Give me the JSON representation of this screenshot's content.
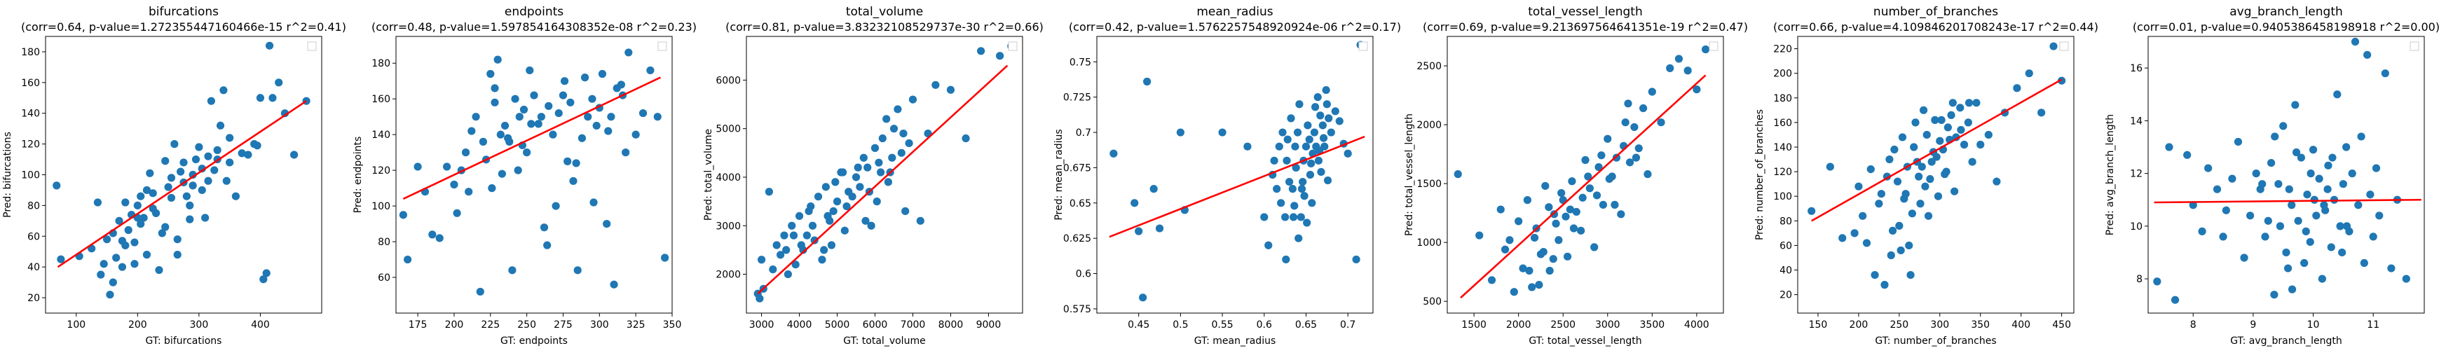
{
  "colors": {
    "points": "#1f77b4",
    "fit_line": "#ff0000",
    "axes": "#000000",
    "background": "#ffffff"
  },
  "chart_data": [
    {
      "type": "scatter",
      "grid": false,
      "legend": "top-right (empty)",
      "title": "bifurcations",
      "subtitle": "(corr=0.64, p-value=1.272355447160466e-15 r^2=0.41)",
      "xlabel": "GT: bifurcations",
      "ylabel": "Pred: bifurcations",
      "xlim": [
        50,
        500
      ],
      "ylim": [
        10,
        190
      ],
      "xticks": [
        100,
        200,
        300,
        400
      ],
      "yticks": [
        20,
        40,
        60,
        80,
        100,
        120,
        140,
        160,
        180
      ],
      "fit": [
        [
          70,
          40
        ],
        [
          475,
          148
        ]
      ],
      "x": [
        68,
        75,
        105,
        125,
        135,
        145,
        150,
        155,
        160,
        165,
        170,
        175,
        180,
        185,
        190,
        195,
        200,
        205,
        210,
        215,
        220,
        225,
        230,
        235,
        240,
        245,
        250,
        255,
        260,
        265,
        270,
        275,
        280,
        285,
        290,
        295,
        300,
        305,
        310,
        315,
        320,
        330,
        335,
        340,
        345,
        350,
        360,
        370,
        380,
        390,
        395,
        400,
        405,
        410,
        415,
        420,
        430,
        440,
        455,
        475,
        140,
        180,
        200,
        225,
        255,
        275,
        290,
        315,
        330,
        350,
        195,
        215,
        245,
        265,
        285,
        305,
        325,
        160,
        175,
        205
      ],
      "y": [
        93,
        45,
        47,
        52,
        82,
        42,
        58,
        22,
        62,
        46,
        70,
        40,
        82,
        64,
        74,
        56,
        80,
        86,
        72,
        90,
        101,
        88,
        75,
        38,
        62,
        109,
        92,
        98,
        120,
        48,
        102,
        108,
        86,
        80,
        93,
        110,
        118,
        104,
        72,
        96,
        148,
        110,
        132,
        155,
        96,
        108,
        86,
        114,
        113,
        120,
        119,
        150,
        32,
        36,
        184,
        150,
        160,
        140,
        113,
        148,
        35,
        54,
        72,
        78,
        85,
        95,
        100,
        112,
        116,
        124,
        42,
        48,
        66,
        58,
        71,
        90,
        103,
        30,
        57,
        68
      ]
    },
    {
      "type": "scatter",
      "grid": false,
      "legend": "top-right (empty)",
      "title": "endpoints",
      "subtitle": "(corr=0.48, p-value=1.597854164308352e-08 r^2=0.23)",
      "xlabel": "GT: endpoints",
      "ylabel": "Pred: endpoints",
      "xlim": [
        160,
        350
      ],
      "ylim": [
        40,
        195
      ],
      "xticks": [
        175,
        200,
        225,
        250,
        275,
        300,
        325,
        350
      ],
      "yticks": [
        60,
        80,
        100,
        120,
        140,
        160,
        180
      ],
      "fit": [
        [
          165,
          104
        ],
        [
          342,
          172
        ]
      ],
      "x": [
        165,
        168,
        175,
        180,
        185,
        190,
        195,
        200,
        202,
        205,
        208,
        210,
        212,
        215,
        218,
        220,
        222,
        225,
        226,
        228,
        230,
        232,
        235,
        238,
        240,
        242,
        245,
        248,
        250,
        252,
        255,
        258,
        260,
        262,
        265,
        268,
        270,
        272,
        275,
        278,
        280,
        282,
        285,
        288,
        290,
        292,
        295,
        298,
        300,
        302,
        305,
        308,
        310,
        312,
        315,
        318,
        320,
        325,
        330,
        335,
        340,
        345,
        228,
        233,
        247,
        253,
        264,
        276,
        284,
        296,
        306,
        316,
        244,
        237
      ],
      "y": [
        95,
        70,
        122,
        108,
        84,
        82,
        122,
        112,
        96,
        120,
        130,
        108,
        142,
        150,
        52,
        136,
        126,
        174,
        110,
        158,
        182,
        140,
        145,
        136,
        64,
        160,
        150,
        154,
        130,
        176,
        162,
        146,
        150,
        88,
        156,
        140,
        100,
        152,
        162,
        125,
        158,
        114,
        64,
        138,
        172,
        150,
        160,
        145,
        155,
        174,
        90,
        150,
        56,
        166,
        168,
        130,
        186,
        140,
        152,
        176,
        150,
        71,
        166,
        118,
        134,
        146,
        78,
        170,
        124,
        102,
        142,
        162,
        120,
        138
      ]
    },
    {
      "type": "scatter",
      "grid": false,
      "legend": "top-right (empty)",
      "title": "total_volume",
      "subtitle": "(corr=0.81, p-value=3.83232108529737e-30 r^2=0.66)",
      "xlabel": "GT: total_volume",
      "ylabel": "Pred: total_volume",
      "xlim": [
        2600,
        9900
      ],
      "ylim": [
        1200,
        6900
      ],
      "xticks": [
        3000,
        4000,
        5000,
        6000,
        7000,
        8000,
        9000
      ],
      "yticks": [
        2000,
        3000,
        4000,
        5000,
        6000
      ],
      "fit": [
        [
          2900,
          1600
        ],
        [
          9500,
          6300
        ]
      ],
      "x": [
        2900,
        2950,
        3000,
        3050,
        3200,
        3400,
        3500,
        3600,
        3700,
        3800,
        3900,
        4000,
        4100,
        4200,
        4300,
        4400,
        4500,
        4600,
        4700,
        4800,
        4900,
        5000,
        5100,
        5200,
        5300,
        5400,
        5500,
        5600,
        5700,
        5800,
        5900,
        6000,
        6100,
        6200,
        6300,
        6400,
        6500,
        6600,
        6700,
        6800,
        6900,
        7000,
        7200,
        7400,
        7600,
        8000,
        8400,
        8800,
        9300,
        9600,
        4050,
        4350,
        4650,
        4950,
        5250,
        5550,
        5850,
        6150,
        6450,
        6750,
        3300,
        3650,
        4250,
        4850,
        5150,
        5750,
        6050,
        6350,
        3850,
        4750
      ],
      "y": [
        1600,
        1500,
        2300,
        1700,
        3700,
        2600,
        2400,
        2800,
        2000,
        3000,
        2200,
        3200,
        2500,
        2800,
        3400,
        2700,
        3600,
        2300,
        3800,
        3100,
        3300,
        3500,
        4100,
        2900,
        3700,
        3600,
        4000,
        3800,
        4400,
        4200,
        3000,
        4600,
        4300,
        4800,
        5200,
        4100,
        5000,
        5400,
        4500,
        3300,
        4700,
        5600,
        3100,
        4900,
        5900,
        5800,
        4800,
        6600,
        6500,
        6700,
        2600,
        3000,
        2500,
        3900,
        3400,
        4200,
        3700,
        4100,
        4400,
        4900,
        2100,
        2500,
        3300,
        2600,
        4100,
        3100,
        3500,
        3900,
        2800,
        3200
      ]
    },
    {
      "type": "scatter",
      "grid": false,
      "legend": "top-right (empty)",
      "title": "mean_radius",
      "subtitle": "(corr=0.42, p-value=1.5762257548920924e-06 r^2=0.17)",
      "xlabel": "GT: mean_radius",
      "ylabel": "Pred: mean_radius",
      "xlim": [
        0.4,
        0.73
      ],
      "ylim": [
        0.572,
        0.768
      ],
      "xticks": [
        0.45,
        0.5,
        0.55,
        0.6,
        0.65,
        0.7
      ],
      "yticks": [
        0.575,
        0.6,
        0.625,
        0.65,
        0.675,
        0.7,
        0.725,
        0.75
      ],
      "fit": [
        [
          0.415,
          0.626
        ],
        [
          0.72,
          0.697
        ]
      ],
      "x": [
        0.42,
        0.445,
        0.45,
        0.455,
        0.46,
        0.468,
        0.475,
        0.5,
        0.505,
        0.55,
        0.58,
        0.6,
        0.605,
        0.61,
        0.612,
        0.615,
        0.618,
        0.62,
        0.622,
        0.625,
        0.627,
        0.63,
        0.632,
        0.635,
        0.637,
        0.64,
        0.642,
        0.645,
        0.647,
        0.65,
        0.652,
        0.655,
        0.657,
        0.66,
        0.662,
        0.665,
        0.667,
        0.67,
        0.672,
        0.675,
        0.677,
        0.68,
        0.685,
        0.69,
        0.695,
        0.7,
        0.71,
        0.715,
        0.628,
        0.638,
        0.648,
        0.658,
        0.668,
        0.634,
        0.644,
        0.654,
        0.664,
        0.674,
        0.626,
        0.636,
        0.646,
        0.656,
        0.666,
        0.676,
        0.641,
        0.651,
        0.661,
        0.671
      ],
      "y": [
        0.685,
        0.65,
        0.63,
        0.583,
        0.736,
        0.66,
        0.632,
        0.7,
        0.645,
        0.7,
        0.69,
        0.64,
        0.62,
        0.67,
        0.68,
        0.66,
        0.69,
        0.65,
        0.7,
        0.64,
        0.68,
        0.665,
        0.71,
        0.64,
        0.69,
        0.7,
        0.72,
        0.66,
        0.68,
        0.69,
        0.705,
        0.67,
        0.65,
        0.7,
        0.69,
        0.68,
        0.712,
        0.705,
        0.69,
        0.72,
        0.71,
        0.7,
        0.715,
        0.708,
        0.692,
        0.685,
        0.61,
        0.762,
        0.695,
        0.675,
        0.655,
        0.685,
        0.672,
        0.66,
        0.64,
        0.695,
        0.725,
        0.73,
        0.61,
        0.648,
        0.665,
        0.678,
        0.687,
        0.666,
        0.625,
        0.636,
        0.718,
        0.696
      ]
    },
    {
      "type": "scatter",
      "grid": false,
      "legend": "top-right (empty)",
      "title": "total_vessel_length",
      "subtitle": "(corr=0.69, p-value=9.213697564641351e-19 r^2=0.47)",
      "xlabel": "GT: total_vessel_length",
      "ylabel": "Pred: total_vessel_length",
      "xlim": [
        1200,
        4300
      ],
      "ylim": [
        400,
        2750
      ],
      "xticks": [
        1500,
        2000,
        2500,
        3000,
        3500,
        4000
      ],
      "yticks": [
        500,
        1000,
        1500,
        2000,
        2500
      ],
      "fit": [
        [
          1350,
          530
        ],
        [
          4100,
          2420
        ]
      ],
      "x": [
        1320,
        1560,
        1700,
        1800,
        1850,
        1900,
        1950,
        2000,
        2050,
        2100,
        2150,
        2200,
        2250,
        2300,
        2350,
        2400,
        2450,
        2500,
        2550,
        2600,
        2650,
        2700,
        2750,
        2800,
        2850,
        2900,
        2950,
        3000,
        3050,
        3100,
        3150,
        3200,
        3250,
        3300,
        3350,
        3400,
        3450,
        3500,
        3600,
        3700,
        3800,
        3900,
        4000,
        4100,
        2120,
        2280,
        2420,
        2580,
        2720,
        2880,
        3020,
        3180,
        3320,
        2180,
        2340,
        2480,
        2620,
        2780,
        2930,
        3080,
        3230,
        2230,
        2390,
        2530
      ],
      "y": [
        1580,
        1060,
        680,
        1280,
        940,
        1020,
        580,
        1180,
        780,
        1360,
        620,
        1120,
        900,
        1480,
        760,
        1240,
        1020,
        1360,
        880,
        1520,
        1260,
        1100,
        1700,
        1460,
        960,
        1640,
        1320,
        1880,
        1560,
        1720,
        1240,
        2020,
        1680,
        1980,
        1800,
        2140,
        1580,
        2280,
        2020,
        2480,
        2560,
        2460,
        2300,
        2640,
        760,
        920,
        1160,
        1280,
        1380,
        1400,
        1540,
        1820,
        1720,
        1040,
        1300,
        1420,
        1120,
        1560,
        1740,
        1320,
        2180,
        640,
        860,
        1220
      ]
    },
    {
      "type": "scatter",
      "grid": false,
      "legend": "top-right (empty)",
      "title": "number_of_branches",
      "subtitle": "(corr=0.66, p-value=4.109846201708243e-17 r^2=0.44)",
      "xlabel": "GT: number_of_branches",
      "ylabel": "Pred: number_of_branches",
      "xlim": [
        125,
        465
      ],
      "ylim": [
        5,
        230
      ],
      "xticks": [
        150,
        200,
        250,
        300,
        350,
        400,
        450
      ],
      "yticks": [
        20,
        40,
        60,
        80,
        100,
        120,
        140,
        160,
        180,
        200,
        220
      ],
      "fit": [
        [
          142,
          80
        ],
        [
          450,
          195
        ]
      ],
      "x": [
        142,
        165,
        180,
        195,
        200,
        205,
        210,
        215,
        220,
        225,
        228,
        232,
        235,
        238,
        240,
        244,
        248,
        250,
        254,
        258,
        260,
        264,
        268,
        270,
        274,
        278,
        280,
        284,
        288,
        290,
        294,
        298,
        300,
        304,
        308,
        310,
        314,
        318,
        320,
        325,
        330,
        335,
        340,
        345,
        350,
        360,
        370,
        380,
        395,
        410,
        425,
        440,
        450,
        262,
        276,
        286,
        296,
        306,
        316,
        326,
        336,
        252,
        266,
        282,
        292,
        302,
        312,
        242,
        256,
        272
      ],
      "y": [
        88,
        124,
        66,
        70,
        108,
        84,
        62,
        122,
        36,
        94,
        102,
        28,
        116,
        130,
        52,
        138,
        112,
        76,
        148,
        102,
        124,
        36,
        140,
        160,
        116,
        124,
        170,
        150,
        114,
        128,
        162,
        100,
        145,
        138,
        120,
        156,
        166,
        104,
        148,
        172,
        142,
        160,
        128,
        176,
        142,
        150,
        112,
        168,
        188,
        200,
        168,
        222,
        194,
        60,
        94,
        84,
        132,
        118,
        176,
        154,
        176,
        56,
        86,
        108,
        136,
        162,
        146,
        72,
        98,
        128
      ]
    },
    {
      "type": "scatter",
      "grid": false,
      "legend": "top-right (empty)",
      "title": "avg_branch_length",
      "subtitle": "(corr=0.01, p-value=0.9405386458198918 r^2=0.00)",
      "xlabel": "GT: avg_branch_length",
      "ylabel": "Pred: avg_branch_length",
      "xlim": [
        7.25,
        11.85
      ],
      "ylim": [
        6.7,
        17.2
      ],
      "xticks": [
        8,
        9,
        10,
        11
      ],
      "yticks": [
        8,
        10,
        12,
        14,
        16
      ],
      "fit": [
        [
          7.35,
          10.9
        ],
        [
          11.8,
          11.0
        ]
      ],
      "x": [
        7.4,
        7.6,
        7.7,
        7.9,
        8.0,
        8.15,
        8.25,
        8.4,
        8.5,
        8.55,
        8.65,
        8.75,
        8.85,
        8.95,
        9.05,
        9.15,
        9.2,
        9.3,
        9.35,
        9.45,
        9.5,
        9.55,
        9.6,
        9.65,
        9.7,
        9.75,
        9.8,
        9.85,
        9.9,
        9.95,
        10.0,
        10.05,
        10.1,
        10.15,
        10.2,
        10.25,
        10.3,
        10.35,
        10.4,
        10.45,
        10.5,
        10.55,
        10.6,
        10.65,
        10.7,
        10.75,
        10.8,
        10.85,
        10.9,
        10.95,
        11.0,
        11.05,
        11.1,
        11.2,
        11.3,
        11.4,
        11.55,
        9.25,
        9.42,
        9.58,
        9.72,
        9.88,
        10.02,
        10.18,
        10.32,
        10.48,
        9.12,
        9.36,
        9.64,
        9.96,
        10.24,
        10.56
      ],
      "y": [
        7.9,
        13.0,
        7.2,
        12.7,
        10.8,
        9.8,
        12.2,
        11.4,
        9.6,
        10.6,
        11.8,
        13.2,
        8.8,
        10.4,
        12.0,
        11.6,
        9.6,
        12.4,
        7.4,
        10.0,
        13.8,
        9.0,
        11.4,
        7.6,
        14.6,
        10.2,
        12.6,
        8.6,
        11.2,
        9.4,
        12.9,
        10.4,
        11.8,
        8.0,
        10.6,
        12.3,
        9.2,
        11.0,
        15.0,
        10.0,
        11.6,
        13.0,
        9.8,
        12.0,
        17.0,
        10.8,
        13.4,
        8.6,
        16.5,
        11.2,
        9.6,
        12.2,
        10.4,
        15.8,
        8.4,
        11.0,
        8.0,
        10.2,
        11.6,
        8.4,
        12.8,
        9.8,
        11.0,
        10.8,
        12.6,
        9.0,
        11.4,
        13.4,
        10.8,
        12.0,
        11.4,
        10.0
      ]
    }
  ]
}
